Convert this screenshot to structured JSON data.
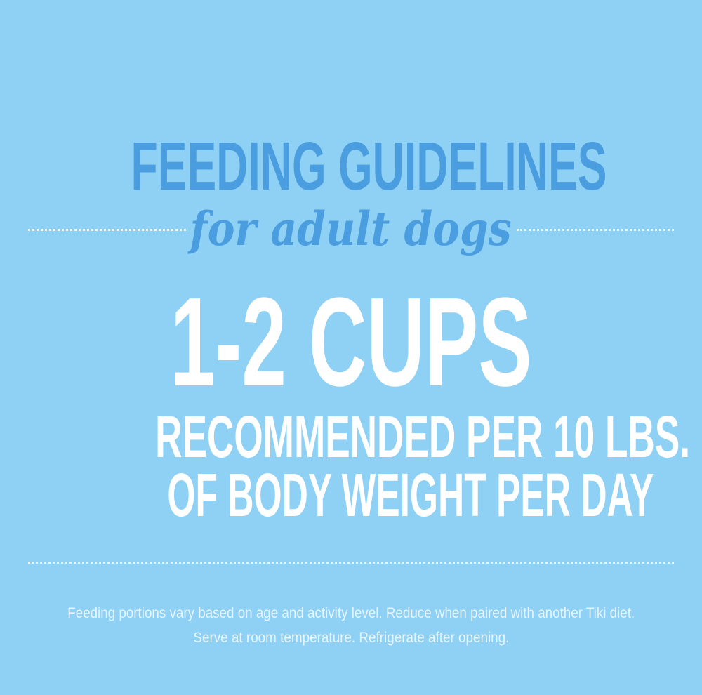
{
  "title": "FEEDING GUIDELINES",
  "subtitle": "for adult dogs",
  "amount": "1-2 CUPS",
  "recommendation_line1": "RECOMMENDED PER 10 LBS.",
  "recommendation_line2": "OF BODY WEIGHT PER DAY",
  "note_line1": "Feeding portions vary based on age and activity level. Reduce when paired with another Tiki diet.",
  "note_line2": "Serve at room temperature. Refrigerate after opening.",
  "colors": {
    "background": "#8fd1f5",
    "accent": "#4a9ee0",
    "text": "#ffffff"
  }
}
